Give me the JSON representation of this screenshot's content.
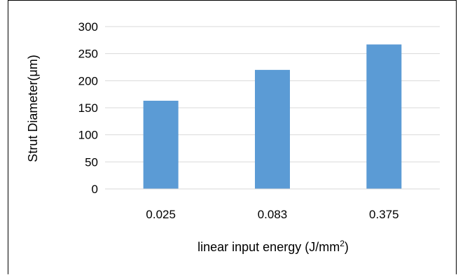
{
  "chart_data": {
    "type": "bar",
    "categories": [
      "0.025",
      "0.083",
      "0.375"
    ],
    "values": [
      163,
      220,
      267
    ],
    "title": "",
    "xlabel": "linear input energy (J/mm",
    "xlabel_sup": "2",
    "xlabel_end": ")",
    "ylabel": "Strut Diameter(μm)",
    "ylim": [
      0,
      300
    ],
    "yticks": [
      0,
      50,
      100,
      150,
      200,
      250,
      300
    ],
    "yticks_labels": [
      "0",
      "50",
      "100",
      "150",
      "200",
      "250",
      "300"
    ],
    "grid": true,
    "legend": "none",
    "bar_color": "#5b9bd5",
    "grid_color": "#d9d9d9"
  }
}
